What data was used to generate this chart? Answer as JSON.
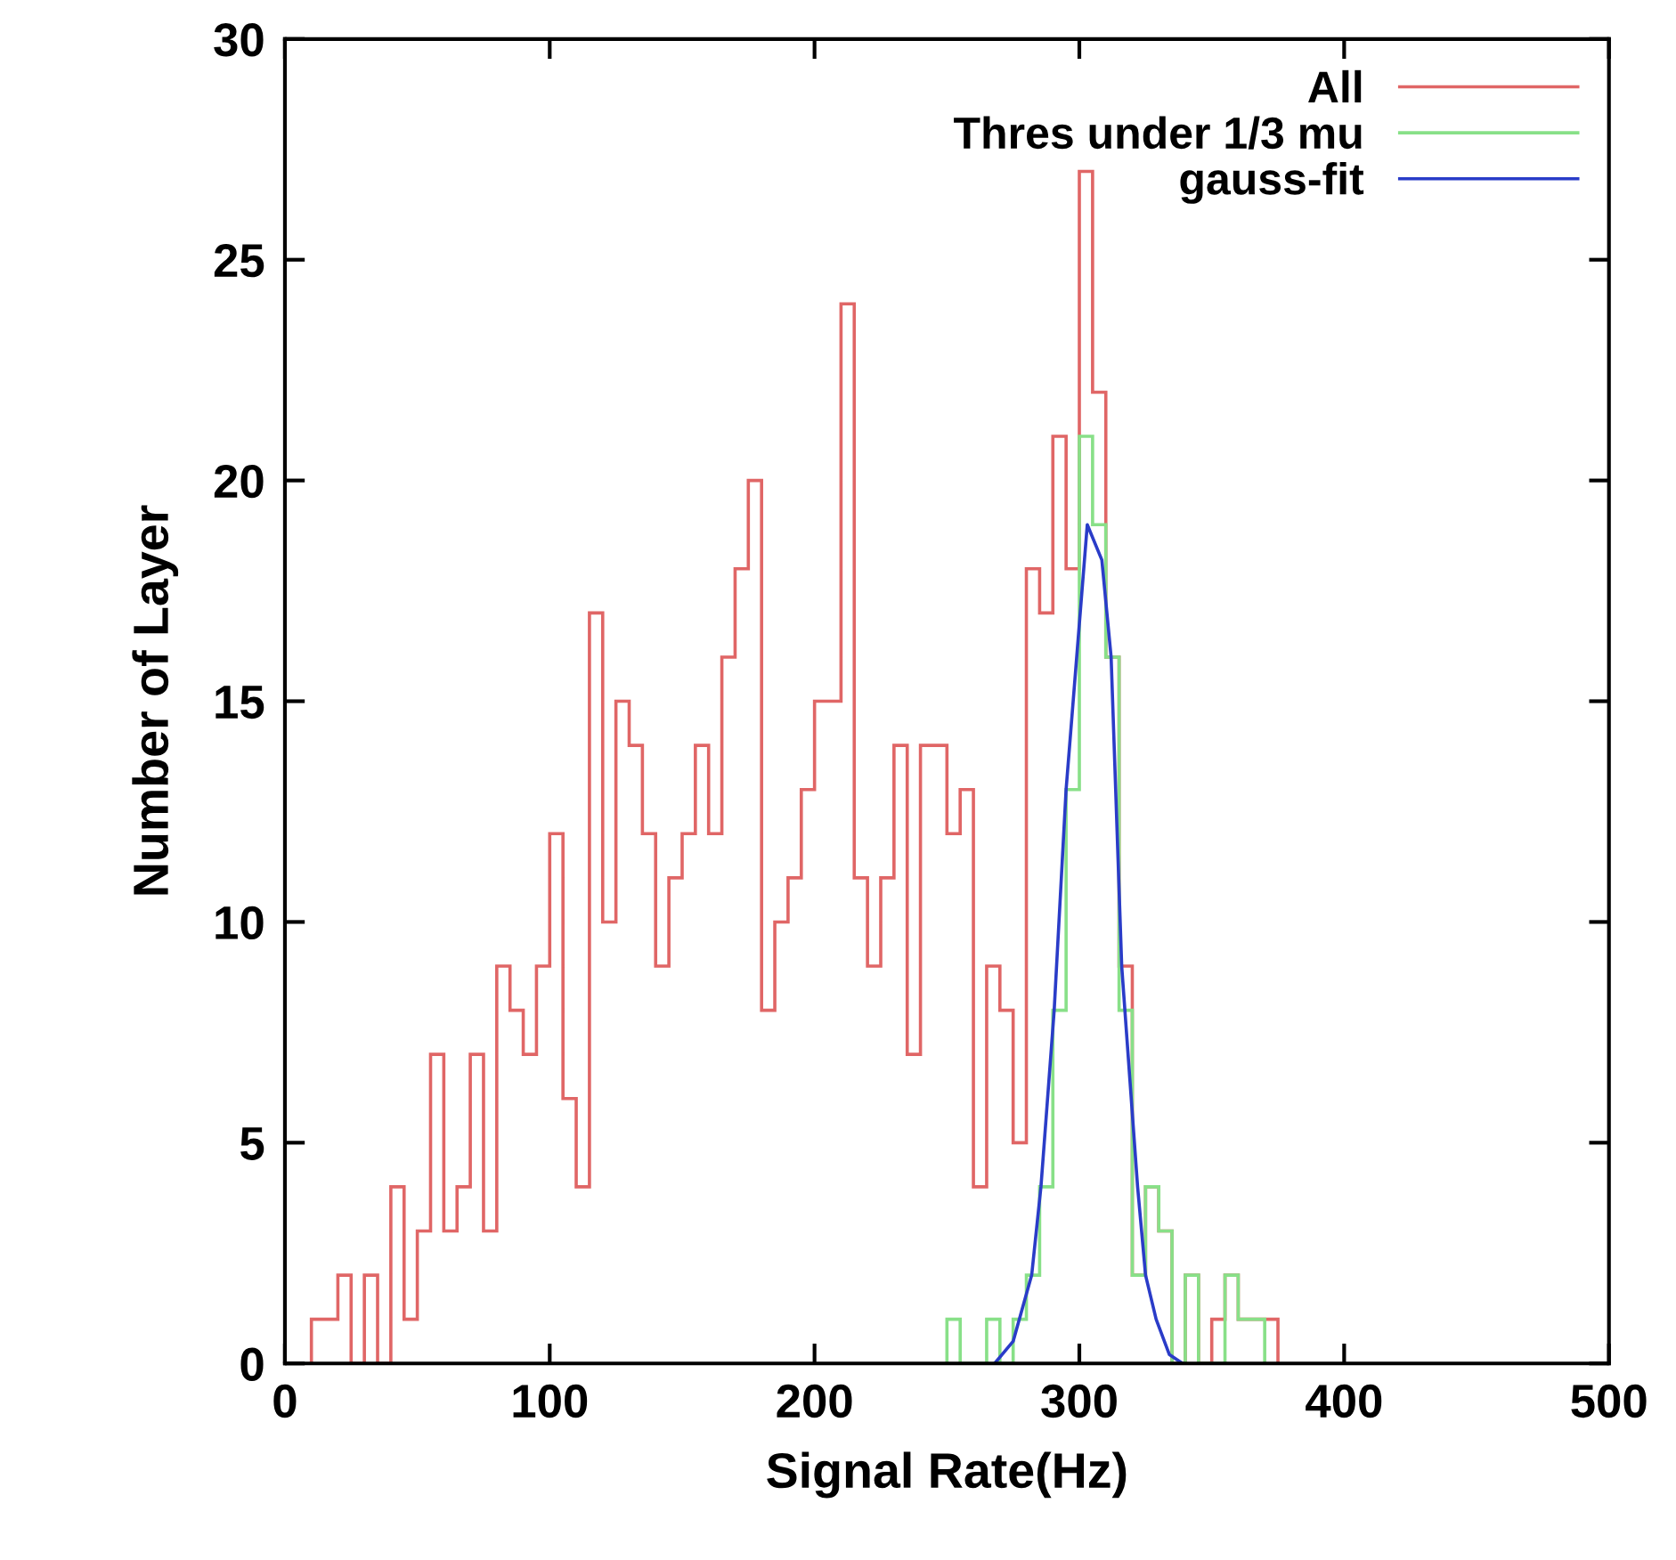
{
  "chart_data": {
    "type": "histogram",
    "xlabel": "Signal Rate(Hz)",
    "ylabel": "Number of Layer",
    "xlim": [
      0,
      500
    ],
    "ylim": [
      0,
      30
    ],
    "xticks": [
      0,
      100,
      200,
      300,
      400,
      500
    ],
    "yticks": [
      0,
      5,
      10,
      15,
      20,
      25,
      30
    ],
    "legend": "top right",
    "series": [
      {
        "name": "All",
        "color": "#e06666",
        "bins": [
          10,
          15,
          20,
          25,
          30,
          35,
          40,
          45,
          50,
          55,
          60,
          65,
          70,
          75,
          80,
          85,
          90,
          95,
          100,
          105,
          110,
          115,
          120,
          125,
          130,
          135,
          140,
          145,
          150,
          155,
          160,
          165,
          170,
          175,
          180,
          185,
          190,
          195,
          200,
          205,
          210,
          215,
          220,
          225,
          230,
          235,
          240,
          245,
          250,
          255,
          260,
          265,
          270,
          275,
          280,
          285,
          290,
          295,
          300,
          305,
          310,
          315,
          320,
          325,
          330,
          335,
          340,
          345,
          350,
          355,
          360,
          365,
          370,
          375
        ],
        "values": [
          1,
          1,
          2,
          0,
          2,
          0,
          4,
          1,
          3,
          7,
          3,
          4,
          7,
          3,
          9,
          8,
          7,
          9,
          12,
          6,
          4,
          17,
          10,
          15,
          14,
          12,
          9,
          11,
          12,
          14,
          12,
          16,
          18,
          20,
          8,
          10,
          11,
          13,
          15,
          15,
          24,
          11,
          9,
          11,
          14,
          7,
          14,
          14,
          12,
          13,
          4,
          9,
          8,
          5,
          18,
          17,
          21,
          18,
          27,
          22,
          16,
          9,
          2,
          4,
          3,
          0,
          2,
          0,
          1,
          2,
          1,
          1,
          1
        ]
      },
      {
        "name": "Thres under 1/3 mu",
        "color": "#88e088",
        "bins": [
          250,
          255,
          260,
          265,
          270,
          275,
          280,
          285,
          290,
          295,
          300,
          305,
          310,
          315,
          320,
          325,
          330,
          335,
          340,
          345,
          350,
          355,
          360,
          365,
          370
        ],
        "values": [
          1,
          0,
          0,
          1,
          0,
          1,
          2,
          4,
          8,
          13,
          21,
          19,
          16,
          8,
          2,
          4,
          3,
          0,
          2,
          0,
          0,
          2,
          1,
          1
        ]
      },
      {
        "name": "gauss-fit",
        "type": "line",
        "color": "#2a3cc8",
        "x": [
          268,
          275,
          282,
          285.5,
          290.5,
          295,
          303,
          308.5,
          312,
          316,
          322,
          325,
          329,
          334,
          339
        ],
        "values": [
          0,
          0.5,
          2,
          4,
          8,
          13,
          19,
          18.2,
          16,
          9,
          4,
          2,
          1,
          0.2,
          0
        ]
      }
    ]
  }
}
